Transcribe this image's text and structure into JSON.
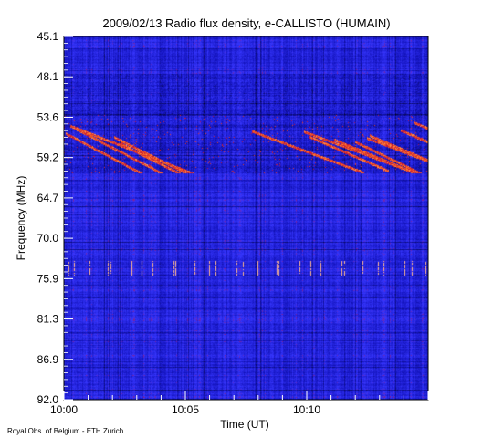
{
  "chart_data": {
    "type": "heatmap",
    "title": "2009/02/13  Radio flux density, e-CALLISTO (HUMAIN)",
    "xlabel": "Time (UT)",
    "ylabel": "Frequency (MHz)",
    "y_ticks": [
      "45.1",
      "48.1",
      "53.6",
      "59.2",
      "64.7",
      "70.0",
      "75.9",
      "81.3",
      "86.9",
      "92.0"
    ],
    "y_inverted": true,
    "x_ticks": [
      "10:00",
      "10:05",
      "10:10"
    ],
    "x_range_minutes": [
      0,
      15
    ],
    "colormap": [
      "#000000",
      "#1a1ad0",
      "#3a3aff",
      "#c0103a",
      "#ff7020",
      "#ffffff"
    ],
    "features": [
      {
        "kind": "drifting bursts",
        "freq_range_mhz": [
          53.6,
          59.2
        ],
        "time_range_minutes": [
          0,
          15
        ]
      },
      {
        "kind": "spiky interference",
        "freq_mhz": 73.2
      }
    ],
    "credit": "Royal Obs. of Belgium - ETH Zurich"
  }
}
